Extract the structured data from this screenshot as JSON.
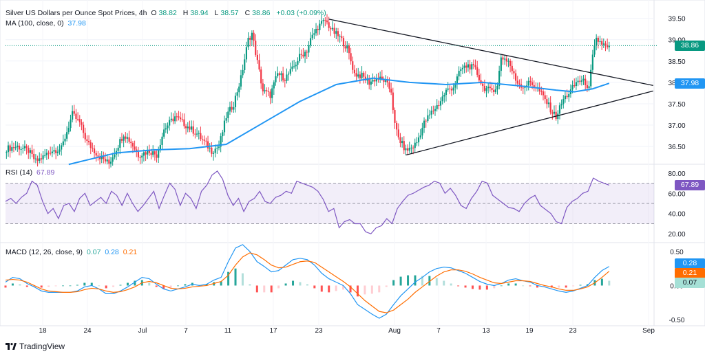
{
  "header": {
    "symbol": "Silver US Dollars per Ounce Spot Prices, 4h",
    "o_label": "O",
    "o_value": "38.82",
    "h_label": "H",
    "h_value": "38.94",
    "l_label": "L",
    "l_value": "38.57",
    "c_label": "C",
    "c_value": "38.86",
    "change": "+0.03 (+0.09%)"
  },
  "ma_legend": {
    "label": "MA (100, close, 0)",
    "value": "37.98"
  },
  "rsi_legend": {
    "label": "RSI (14)",
    "value": "67.89"
  },
  "macd_legend": {
    "label": "MACD (12, 26, close, 9)",
    "v1": "0.07",
    "v2": "0.28",
    "v3": "0.21"
  },
  "tags": {
    "price": "38.86",
    "ma": "37.98",
    "rsi": "67.89",
    "macd_line": "0.28",
    "signal": "0.21",
    "hist": "0.07"
  },
  "brand": "TradingView",
  "colors": {
    "up": "#089981",
    "down": "#f23645",
    "ma": "#2196f3",
    "rsi": "#7e57c2",
    "macd": "#2196f3",
    "signal": "#ff6d00",
    "trend": "#131722"
  },
  "chart_data": [
    {
      "type": "candlestick",
      "title": "Silver US Dollars per Ounce Spot Prices, 4h",
      "y_ticks": [
        "39.50",
        "39.00",
        "38.50",
        "38.00",
        "37.50",
        "37.00",
        "36.50"
      ],
      "ylim": [
        36.1,
        39.8
      ],
      "x_ticks": [
        "18",
        "24",
        "Jul",
        "7",
        "11",
        "17",
        "23",
        "Aug",
        "7",
        "13",
        "19",
        "23",
        "Sep"
      ],
      "price_path": [
        [
          0,
          36.45
        ],
        [
          6,
          36.5
        ],
        [
          12,
          36.4
        ],
        [
          16,
          36.15
        ],
        [
          20,
          36.25
        ],
        [
          24,
          36.4
        ],
        [
          30,
          36.45
        ],
        [
          36,
          37.25
        ],
        [
          40,
          37.05
        ],
        [
          44,
          36.6
        ],
        [
          50,
          36.3
        ],
        [
          56,
          36.1
        ],
        [
          60,
          36.45
        ],
        [
          64,
          36.8
        ],
        [
          68,
          36.6
        ],
        [
          72,
          36.3
        ],
        [
          78,
          36.4
        ],
        [
          82,
          36.3
        ],
        [
          86,
          36.9
        ],
        [
          92,
          37.2
        ],
        [
          98,
          37.0
        ],
        [
          104,
          36.8
        ],
        [
          108,
          36.6
        ],
        [
          112,
          36.4
        ],
        [
          116,
          36.5
        ],
        [
          120,
          37.2
        ],
        [
          124,
          37.5
        ],
        [
          128,
          38.1
        ],
        [
          132,
          39.0
        ],
        [
          134,
          39.15
        ],
        [
          136,
          38.7
        ],
        [
          140,
          37.8
        ],
        [
          144,
          37.7
        ],
        [
          148,
          38.2
        ],
        [
          152,
          38.1
        ],
        [
          156,
          38.3
        ],
        [
          160,
          38.6
        ],
        [
          164,
          38.75
        ],
        [
          166,
          39.0
        ],
        [
          170,
          39.3
        ],
        [
          174,
          39.45
        ],
        [
          178,
          39.2
        ],
        [
          182,
          39.05
        ],
        [
          186,
          38.8
        ],
        [
          190,
          38.2
        ],
        [
          194,
          38.15
        ],
        [
          198,
          38.0
        ],
        [
          202,
          38.1
        ],
        [
          206,
          38.05
        ],
        [
          210,
          37.8
        ],
        [
          212,
          37.0
        ],
        [
          214,
          36.7
        ],
        [
          218,
          36.4
        ],
        [
          222,
          36.5
        ],
        [
          224,
          36.6
        ],
        [
          228,
          37.05
        ],
        [
          232,
          37.3
        ],
        [
          236,
          37.5
        ],
        [
          240,
          37.8
        ],
        [
          244,
          37.9
        ],
        [
          248,
          38.3
        ],
        [
          252,
          38.4
        ],
        [
          256,
          38.3
        ],
        [
          260,
          37.9
        ],
        [
          264,
          37.8
        ],
        [
          268,
          37.9
        ],
        [
          270,
          38.6
        ],
        [
          274,
          38.5
        ],
        [
          278,
          38.05
        ],
        [
          282,
          37.9
        ],
        [
          286,
          38.0
        ],
        [
          290,
          37.85
        ],
        [
          294,
          37.6
        ],
        [
          298,
          37.3
        ],
        [
          300,
          37.2
        ],
        [
          304,
          37.6
        ],
        [
          308,
          37.8
        ],
        [
          312,
          38.05
        ],
        [
          316,
          38.0
        ],
        [
          318,
          37.85
        ],
        [
          320,
          38.6
        ],
        [
          322,
          39.0
        ],
        [
          324,
          38.95
        ],
        [
          328,
          38.8
        ],
        [
          329,
          38.86
        ]
      ],
      "ma100_path": [
        [
          34,
          36.08
        ],
        [
          60,
          36.35
        ],
        [
          80,
          36.42
        ],
        [
          100,
          36.45
        ],
        [
          120,
          36.55
        ],
        [
          140,
          37.05
        ],
        [
          160,
          37.55
        ],
        [
          180,
          37.95
        ],
        [
          200,
          38.1
        ],
        [
          220,
          38.0
        ],
        [
          240,
          37.95
        ],
        [
          260,
          38.0
        ],
        [
          280,
          37.92
        ],
        [
          300,
          37.82
        ],
        [
          310,
          37.78
        ],
        [
          320,
          37.85
        ],
        [
          329,
          37.98
        ]
      ],
      "trendlines": [
        {
          "from": [
            176,
            39.48
          ],
          "to": [
            350,
            37.88
          ]
        },
        {
          "from": [
            218,
            36.3
          ],
          "to": [
            350,
            37.75
          ]
        }
      ],
      "last_price": 38.86,
      "ma_last": 37.98
    },
    {
      "type": "line",
      "title": "RSI (14)",
      "ylim": [
        12,
        88
      ],
      "y_ticks": [
        "80.00",
        "60.00",
        "40.00",
        "20.00"
      ],
      "bands": [
        30,
        50,
        70
      ],
      "values": [
        52,
        55,
        50,
        56,
        60,
        72,
        68,
        52,
        40,
        45,
        35,
        48,
        50,
        42,
        55,
        60,
        48,
        52,
        56,
        50,
        62,
        58,
        48,
        60,
        50,
        42,
        48,
        55,
        62,
        45,
        58,
        70,
        64,
        48,
        60,
        55,
        45,
        62,
        68,
        78,
        82,
        74,
        58,
        48,
        55,
        42,
        52,
        55,
        62,
        52,
        50,
        56,
        58,
        62,
        60,
        72,
        70,
        68,
        66,
        62,
        54,
        42,
        45,
        26,
        32,
        34,
        30,
        30,
        22,
        20,
        26,
        28,
        35,
        30,
        45,
        52,
        58,
        60,
        63,
        66,
        68,
        72,
        70,
        60,
        65,
        58,
        48,
        45,
        55,
        62,
        72,
        70,
        58,
        54,
        50,
        46,
        45,
        42,
        50,
        55,
        58,
        48,
        44,
        40,
        32,
        30,
        46,
        52,
        55,
        60,
        62,
        75,
        72,
        70,
        68
      ]
    },
    {
      "type": "bar+line",
      "title": "MACD (12, 26, close, 9)",
      "ylim": [
        -0.55,
        0.62
      ],
      "y_ticks": [
        "0.50",
        "0.00",
        "-0.50"
      ],
      "macd": [
        0.05,
        0.12,
        0.1,
        0.03,
        -0.02,
        -0.08,
        -0.1,
        -0.1,
        -0.1,
        -0.1,
        -0.08,
        -0.02,
        0.0,
        -0.05,
        -0.12,
        -0.12,
        -0.08,
        -0.02,
        0.05,
        0.12,
        0.1,
        0.02,
        -0.05,
        -0.08,
        -0.05,
        -0.02,
        0.02,
        0.0,
        0.02,
        0.08,
        0.12,
        0.35,
        0.55,
        0.6,
        0.5,
        0.35,
        0.28,
        0.2,
        0.22,
        0.3,
        0.38,
        0.4,
        0.38,
        0.3,
        0.18,
        0.1,
        0.05,
        0.0,
        -0.12,
        -0.28,
        -0.35,
        -0.42,
        -0.48,
        -0.42,
        -0.28,
        -0.15,
        -0.05,
        0.05,
        0.12,
        0.2,
        0.25,
        0.27,
        0.26,
        0.22,
        0.18,
        0.12,
        0.06,
        0.02,
        0.0,
        0.03,
        0.08,
        0.1,
        0.07,
        0.05,
        0.0,
        -0.02,
        -0.05,
        -0.08,
        -0.1,
        -0.08,
        -0.04,
        0.0,
        0.12,
        0.22,
        0.28
      ],
      "signal": [
        0.08,
        0.09,
        0.08,
        0.05,
        0.0,
        -0.05,
        -0.08,
        -0.09,
        -0.1,
        -0.1,
        -0.09,
        -0.06,
        -0.04,
        -0.05,
        -0.08,
        -0.1,
        -0.09,
        -0.06,
        -0.02,
        0.04,
        0.06,
        0.04,
        0.0,
        -0.04,
        -0.05,
        -0.04,
        -0.02,
        -0.01,
        0.0,
        0.03,
        0.06,
        0.15,
        0.3,
        0.42,
        0.48,
        0.45,
        0.38,
        0.3,
        0.26,
        0.27,
        0.31,
        0.35,
        0.36,
        0.34,
        0.27,
        0.2,
        0.13,
        0.06,
        -0.02,
        -0.12,
        -0.22,
        -0.3,
        -0.38,
        -0.4,
        -0.36,
        -0.28,
        -0.2,
        -0.1,
        -0.02,
        0.06,
        0.14,
        0.2,
        0.23,
        0.23,
        0.21,
        0.17,
        0.12,
        0.08,
        0.04,
        0.03,
        0.05,
        0.07,
        0.07,
        0.06,
        0.03,
        0.0,
        -0.02,
        -0.05,
        -0.07,
        -0.07,
        -0.05,
        -0.02,
        0.04,
        0.12,
        0.21
      ]
    }
  ]
}
